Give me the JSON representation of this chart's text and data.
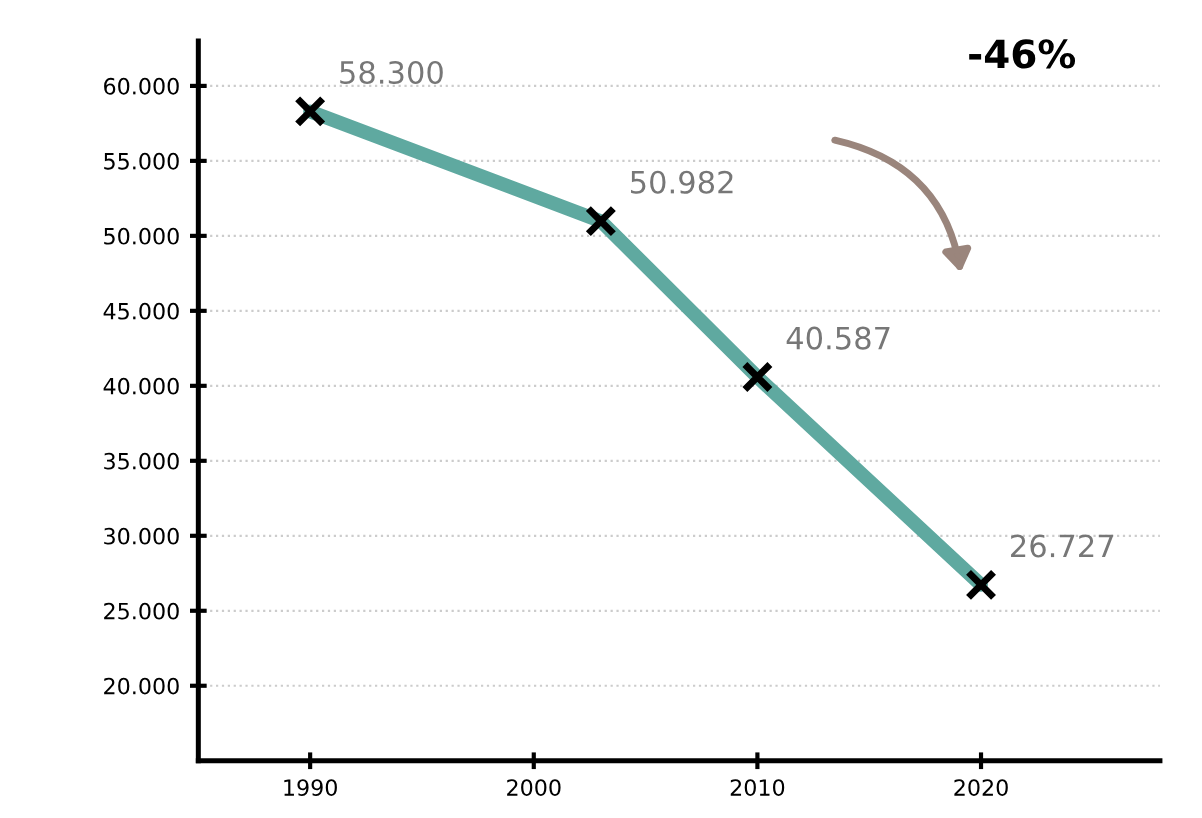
{
  "chart_data": {
    "type": "line",
    "x": [
      1990,
      2003,
      2010,
      2020
    ],
    "series": [
      {
        "color": "#5fa9a0",
        "values": [
          58300,
          50982,
          40587,
          26727
        ]
      }
    ],
    "value_labels": [
      "58.300",
      "50.982",
      "40.587",
      "26.727"
    ],
    "marker": "cross",
    "line_style": "solid",
    "xlim": [
      1985,
      2028
    ],
    "xticks": [
      1990,
      2000,
      2010,
      2020
    ],
    "ylim": [
      15000,
      63000
    ],
    "yticks": [
      {
        "value": 20000,
        "label": "20.000"
      },
      {
        "value": 25000,
        "label": "25.000"
      },
      {
        "value": 30000,
        "label": "30.000"
      },
      {
        "value": 35000,
        "label": "35.000"
      },
      {
        "value": 40000,
        "label": "40.000"
      },
      {
        "value": 45000,
        "label": "45.000"
      },
      {
        "value": 50000,
        "label": "50.000"
      },
      {
        "value": 55000,
        "label": "55.000"
      },
      {
        "value": 60000,
        "label": "60.000"
      }
    ],
    "grid": "y",
    "annotations": [
      "-46%"
    ]
  }
}
